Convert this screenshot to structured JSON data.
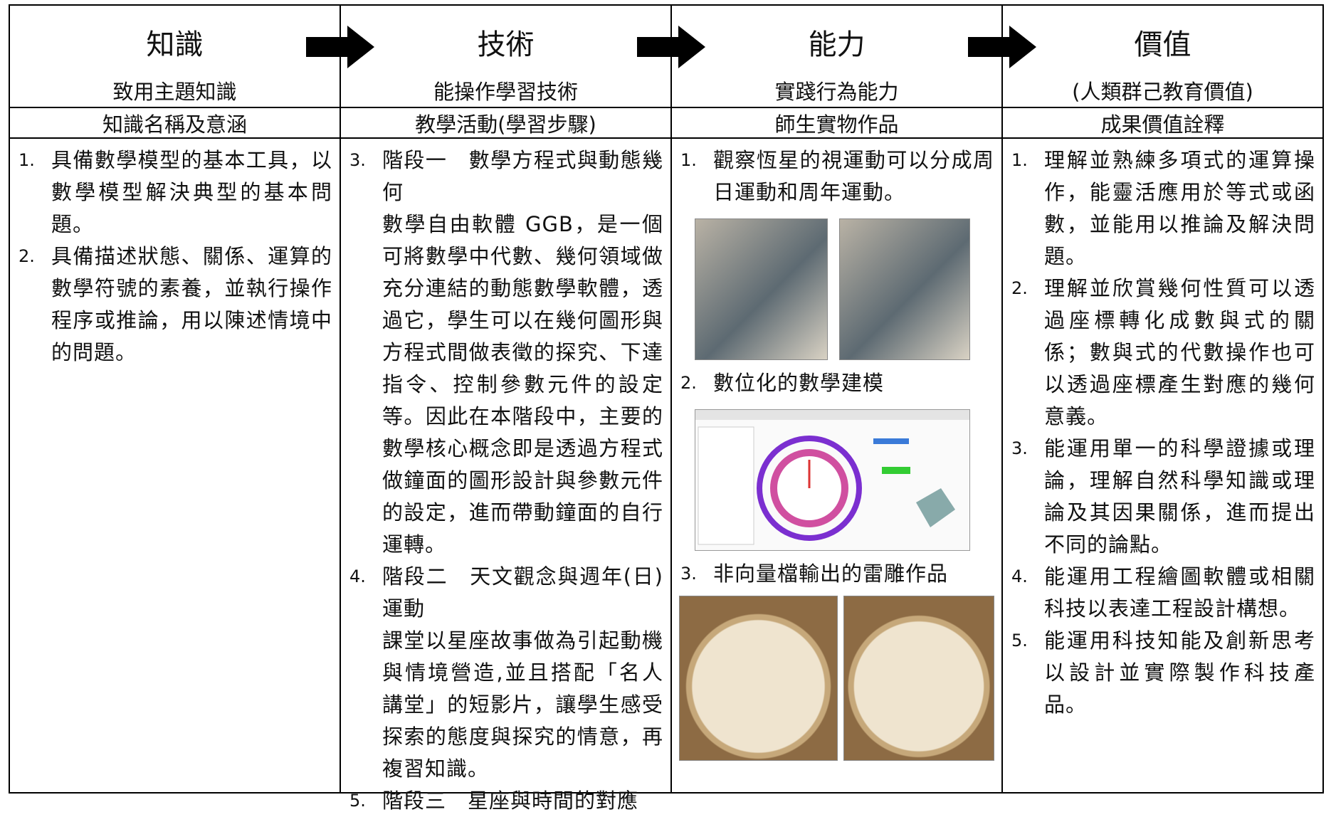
{
  "columns": [
    {
      "title": "知識",
      "subtitle": "致用主題知識",
      "heading": "知識名稱及意涵",
      "items": [
        {
          "number": "1.",
          "text": "具備數學模型的基本工具，以數學模型解決典型的基本問題。"
        },
        {
          "number": "2.",
          "text": "具備描述狀態、關係、運算的數學符號的素養，並執行操作程序或推論，用以陳述情境中的問題。"
        }
      ]
    },
    {
      "title": "技術",
      "subtitle": "能操作學習技術",
      "heading": "教學活動(學習步驟)",
      "items": [
        {
          "number": "3.",
          "text": "階段一　數學方程式與動態幾何",
          "detail": "數學自由軟體 GGB，是一個可將數學中代數、幾何領域做充分連結的動態數學軟體，透過它，學生可以在幾何圖形與方程式間做表徵的探究、下達指令、控制參數元件的設定等。因此在本階段中，主要的數學核心概念即是透過方程式做鐘面的圖形設計與參數元件的設定，進而帶動鐘面的自行運轉。"
        },
        {
          "number": "4.",
          "text": "階段二　天文觀念與週年(日)運動",
          "detail": "課堂以星座故事做為引起動機與情境營造,並且搭配「名人講堂」的短影片，讓學生感受探索的態度與探究的情意，再複習知識。"
        },
        {
          "number": "5.",
          "text": "階段三　星座與時間的對應"
        }
      ]
    },
    {
      "title": "能力",
      "subtitle": "實踐行為能力",
      "heading": "師生實物作品",
      "items": [
        {
          "number": "1.",
          "text": "觀察恆星的視運動可以分成周日運動和周年運動。"
        },
        {
          "number": "2.",
          "text": "數位化的數學建模"
        },
        {
          "number": "3.",
          "text": "非向量檔輸出的雷雕作品"
        }
      ]
    },
    {
      "title": "價值",
      "subtitle": "(人類群己教育價值)",
      "heading": "成果價值詮釋",
      "items": [
        {
          "number": "1.",
          "text": "理解並熟練多項式的運算操作，能靈活應用於等式或函數，並能用以推論及解決問題。"
        },
        {
          "number": "2.",
          "text": "理解並欣賞幾何性質可以透過座標轉化成數與式的關係；數與式的代數操作也可以透過座標產生對應的幾何意義。"
        },
        {
          "number": "3.",
          "text": "能運用單一的科學證據或理論，理解自然科學知識或理論及其因果關係，進而提出不同的論點。"
        },
        {
          "number": "4.",
          "text": "能運用工程繪圖軟體或相關科技以表達工程設計構想。"
        },
        {
          "number": "5.",
          "text": "能運用科技知能及創新思考以設計並實際製作科技產品。"
        }
      ]
    }
  ]
}
